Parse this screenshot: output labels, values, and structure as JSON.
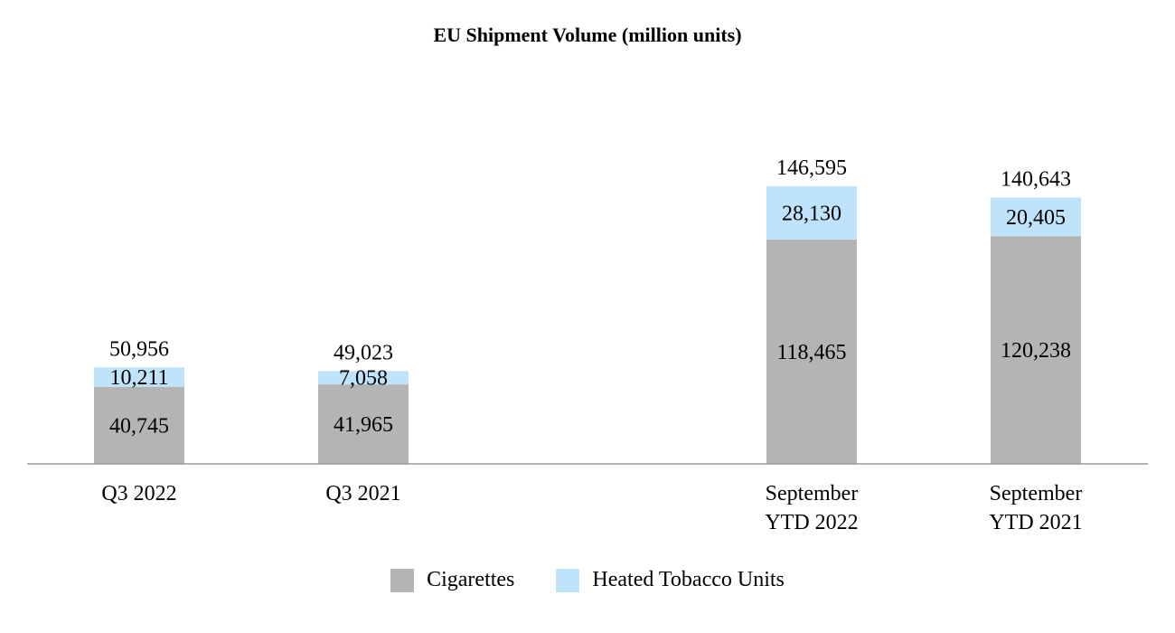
{
  "chart_data": {
    "type": "bar",
    "stacked": true,
    "title": "EU Shipment Volume (million units)",
    "xlabel": "",
    "ylabel": "",
    "categories": [
      [
        "Q3 2022"
      ],
      [
        "Q3 2021"
      ],
      [
        "September",
        "YTD 2022"
      ],
      [
        "September",
        "YTD 2021"
      ]
    ],
    "series": [
      {
        "name": "Cigarettes",
        "color": "#b4b4b4",
        "values": [
          40745,
          41965,
          118465,
          120238
        ],
        "labels": [
          "40,745",
          "41,965",
          "118,465",
          "120,238"
        ]
      },
      {
        "name": "Heated Tobacco Units",
        "color": "#bfe3fa",
        "values": [
          10211,
          7058,
          28130,
          20405
        ],
        "labels": [
          "10,211",
          "7,058",
          "28,130",
          "20,405"
        ]
      }
    ],
    "totals": [
      50956,
      49023,
      146595,
      140643
    ],
    "total_labels": [
      "50,956",
      "49,023",
      "146,595",
      "140,643"
    ],
    "ylim": [
      0,
      146595
    ],
    "grid": false,
    "legend": "bottom-center"
  }
}
